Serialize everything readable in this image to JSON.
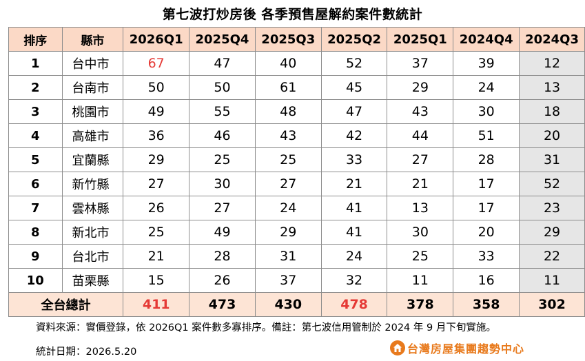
{
  "title": "第七波打炒房後  各季預售屋解約案件數統計",
  "headers": [
    "排序",
    "縣市",
    "2026Q1",
    "2025Q4",
    "2025Q3",
    "2025Q2",
    "2025Q1",
    "2024Q4",
    "2024Q3"
  ],
  "rows": [
    {
      "rank": "1",
      "city": "台中市",
      "values": [
        "67",
        "47",
        "40",
        "52",
        "37",
        "39",
        "12"
      ]
    },
    {
      "rank": "2",
      "city": "台南市",
      "values": [
        "50",
        "50",
        "61",
        "45",
        "29",
        "24",
        "13"
      ]
    },
    {
      "rank": "3",
      "city": "桃園市",
      "values": [
        "49",
        "55",
        "48",
        "47",
        "43",
        "30",
        "18"
      ]
    },
    {
      "rank": "4",
      "city": "高雄市",
      "values": [
        "36",
        "46",
        "43",
        "42",
        "44",
        "51",
        "20"
      ]
    },
    {
      "rank": "5",
      "city": "宜蘭縣",
      "values": [
        "29",
        "25",
        "25",
        "33",
        "27",
        "28",
        "31"
      ]
    },
    {
      "rank": "6",
      "city": "新竹縣",
      "values": [
        "27",
        "30",
        "27",
        "21",
        "21",
        "17",
        "52"
      ]
    },
    {
      "rank": "7",
      "city": "雲林縣",
      "values": [
        "26",
        "27",
        "24",
        "41",
        "13",
        "17",
        "23"
      ]
    },
    {
      "rank": "8",
      "city": "新北市",
      "values": [
        "25",
        "49",
        "29",
        "41",
        "30",
        "20",
        "29"
      ]
    },
    {
      "rank": "9",
      "city": "台北市",
      "values": [
        "21",
        "28",
        "31",
        "24",
        "25",
        "33",
        "22"
      ]
    },
    {
      "rank": "10",
      "city": "苗栗縣",
      "values": [
        "15",
        "26",
        "37",
        "32",
        "11",
        "16",
        "11"
      ]
    }
  ],
  "total": {
    "label": "全台總計",
    "values": [
      "411",
      "473",
      "430",
      "478",
      "378",
      "358",
      "302"
    ]
  },
  "note": "資料來源：實價登錄，依 2026Q1 案件數多寡排序。備註：第七波信用管制於 2024 年 9 月下旬實施。",
  "date": "統計日期：2026.5.20",
  "logo_text": "台灣房屋集團趨勢中心",
  "colors": {
    "header_bg": "#fbd9c6",
    "total_bg": "#fde4d5",
    "shaded_column_bg": "#e6e6e6",
    "highlight_red": "#e53935",
    "logo_orange": "#e87a1d"
  }
}
